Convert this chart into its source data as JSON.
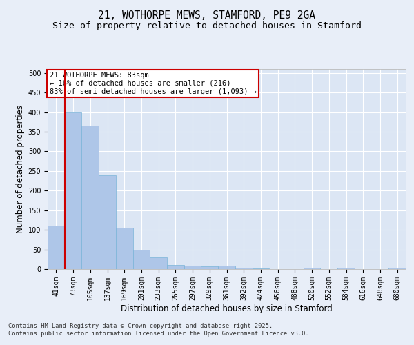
{
  "title": "21, WOTHORPE MEWS, STAMFORD, PE9 2GA",
  "subtitle": "Size of property relative to detached houses in Stamford",
  "xlabel": "Distribution of detached houses by size in Stamford",
  "ylabel": "Number of detached properties",
  "categories": [
    "41sqm",
    "73sqm",
    "105sqm",
    "137sqm",
    "169sqm",
    "201sqm",
    "233sqm",
    "265sqm",
    "297sqm",
    "329sqm",
    "361sqm",
    "392sqm",
    "424sqm",
    "456sqm",
    "488sqm",
    "520sqm",
    "552sqm",
    "584sqm",
    "616sqm",
    "648sqm",
    "680sqm"
  ],
  "values": [
    110,
    400,
    365,
    240,
    105,
    50,
    30,
    10,
    8,
    7,
    8,
    3,
    1,
    0,
    0,
    3,
    0,
    3,
    0,
    0,
    3
  ],
  "bar_color": "#aec6e8",
  "bar_edge_color": "#7ab4d8",
  "bg_color": "#e8eef8",
  "plot_bg_color": "#dce6f4",
  "grid_color": "#ffffff",
  "vline_color": "#cc0000",
  "vline_x_data": 0.5,
  "annotation_text": "21 WOTHORPE MEWS: 83sqm\n← 16% of detached houses are smaller (216)\n83% of semi-detached houses are larger (1,093) →",
  "annotation_box_color": "#cc0000",
  "ylim": [
    0,
    510
  ],
  "yticks": [
    0,
    50,
    100,
    150,
    200,
    250,
    300,
    350,
    400,
    450,
    500
  ],
  "footer": "Contains HM Land Registry data © Crown copyright and database right 2025.\nContains public sector information licensed under the Open Government Licence v3.0.",
  "title_fontsize": 10.5,
  "subtitle_fontsize": 9.5,
  "tick_fontsize": 7,
  "ylabel_fontsize": 8.5,
  "xlabel_fontsize": 8.5,
  "annotation_fontsize": 7.5
}
